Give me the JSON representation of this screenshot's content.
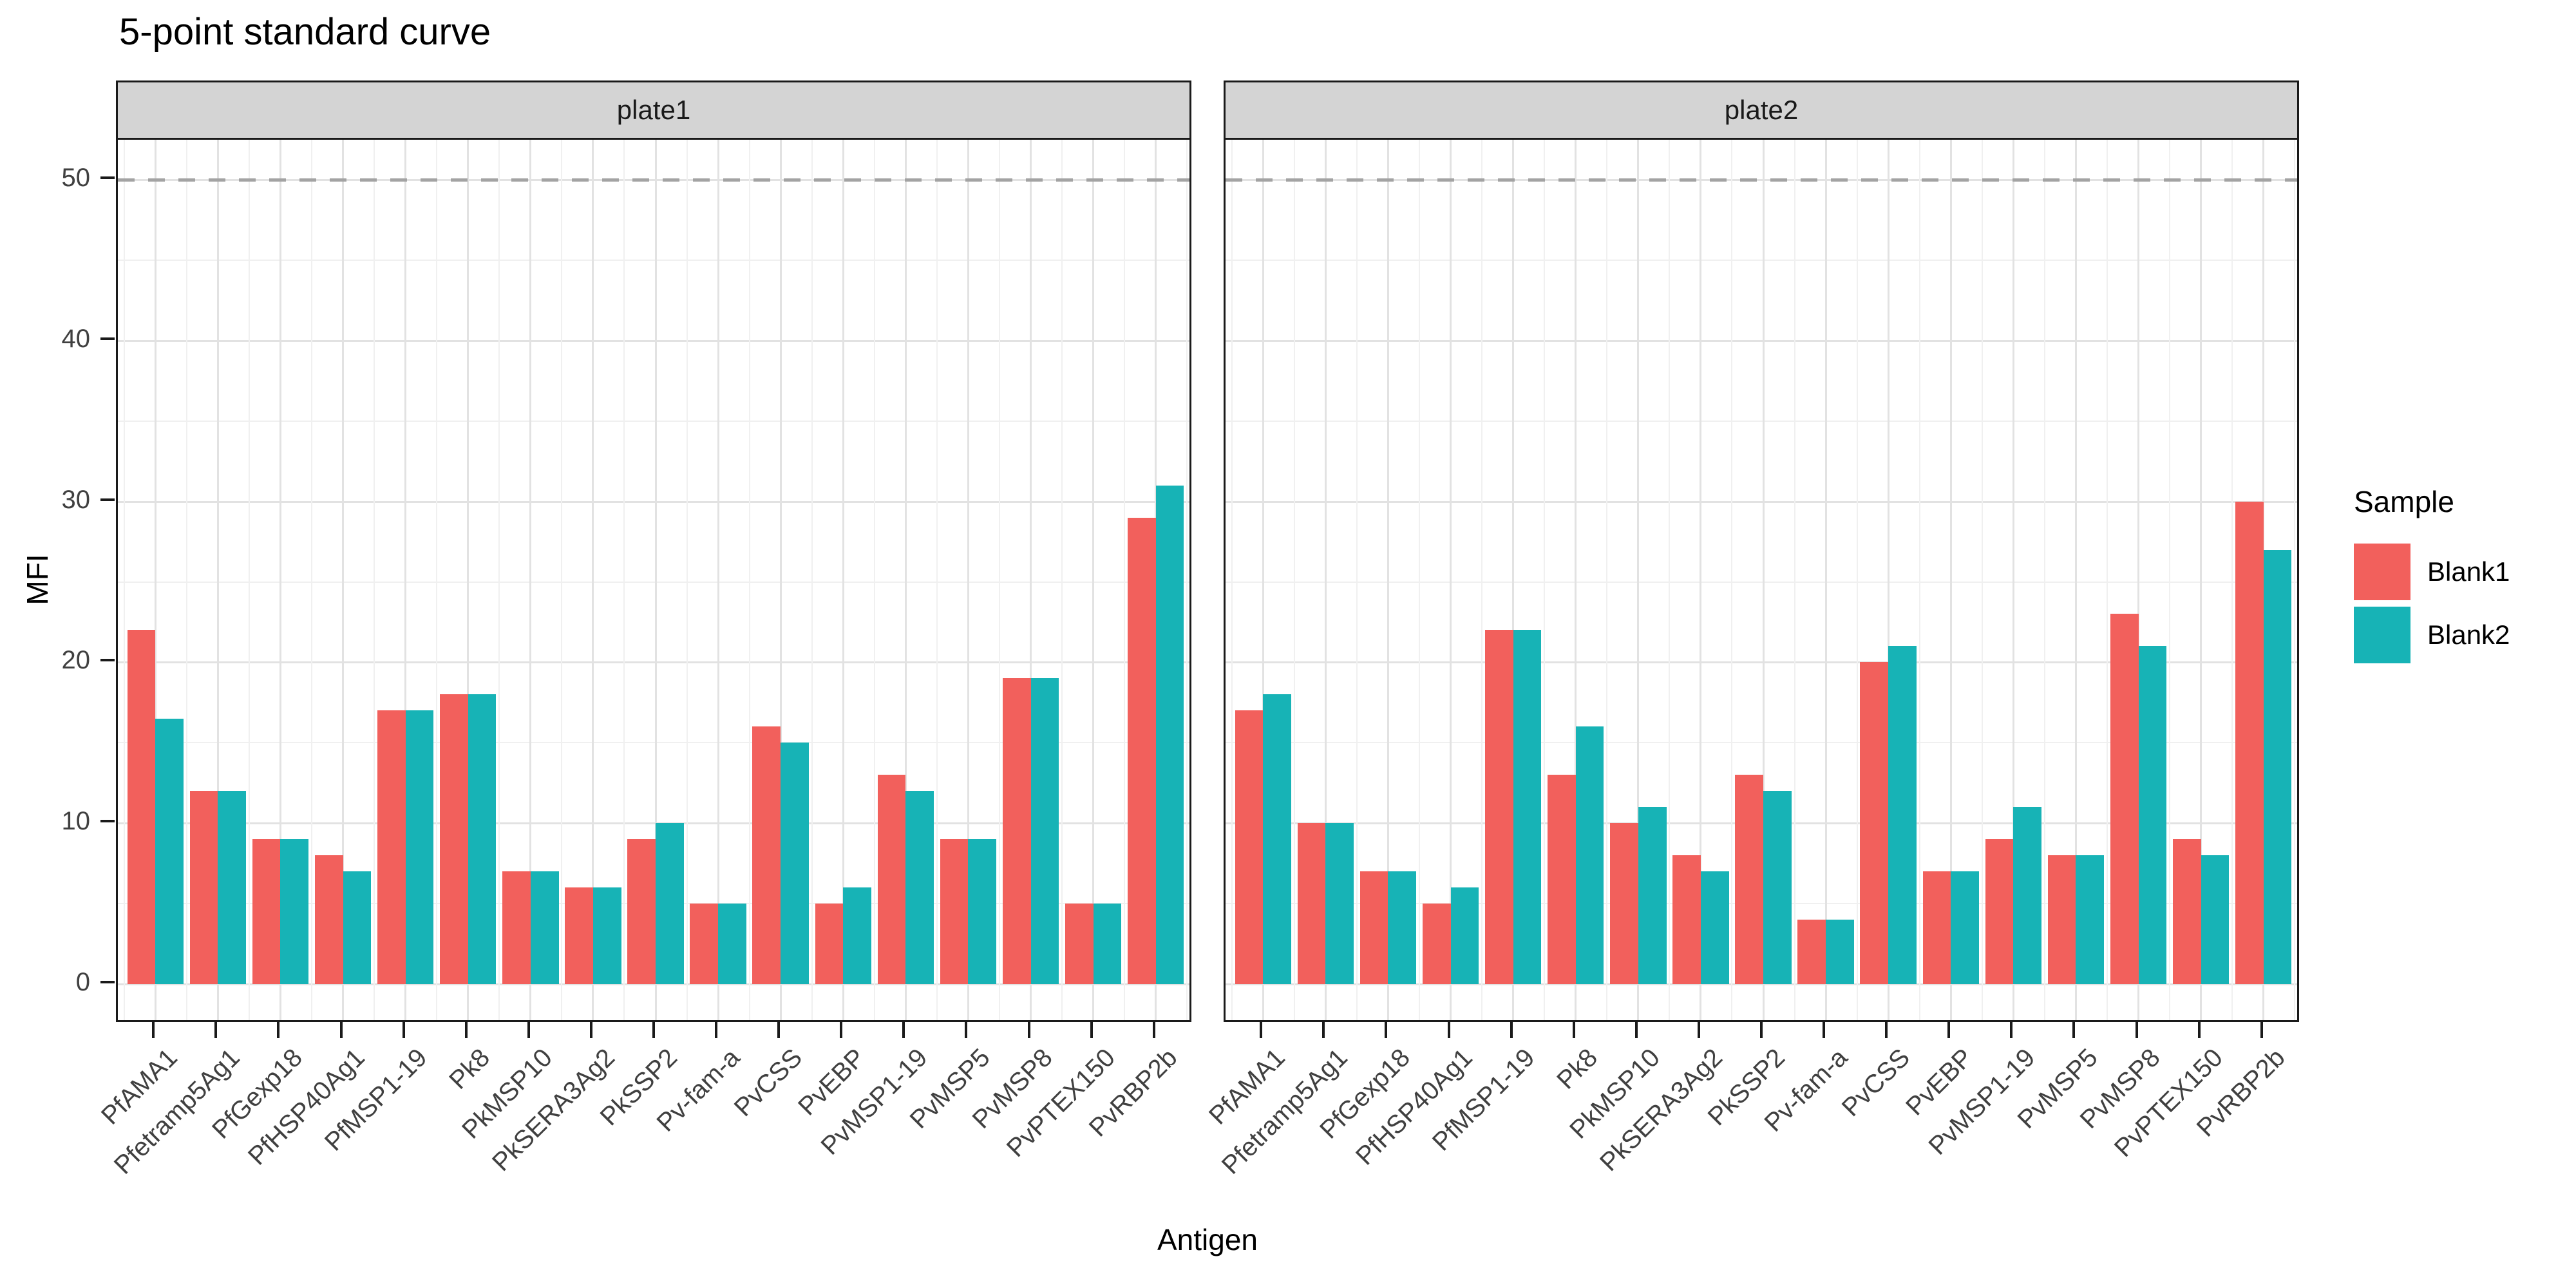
{
  "chart_data": {
    "type": "bar",
    "title": "5-point standard curve",
    "xlabel": "Antigen",
    "ylabel": "MFI",
    "ylim": [
      0,
      52.5
    ],
    "yticks": [
      0,
      10,
      20,
      30,
      40,
      50
    ],
    "grid": "on",
    "reference_line": {
      "y": 50,
      "style": "dashed",
      "color": "#a3a3a3"
    },
    "legend": {
      "title": "Sample",
      "position": "right"
    },
    "series_names": [
      "Blank1",
      "Blank2"
    ],
    "series_colors": {
      "Blank1": "#f2605c",
      "Blank2": "#17b3b6"
    },
    "categories": [
      "PfAMA1",
      "Pfetramp5Ag1",
      "PfGexp18",
      "PfHSP40Ag1",
      "PfMSP1-19",
      "Pk8",
      "PkMSP10",
      "PkSERA3Ag2",
      "PkSSP2",
      "Pv-fam-a",
      "PvCSS",
      "PvEBP",
      "PvMSP1-19",
      "PvMSP5",
      "PvMSP8",
      "PvPTEX150",
      "PvRBP2b"
    ],
    "facets": [
      {
        "label": "plate1",
        "series": [
          {
            "name": "Blank1",
            "values": [
              22,
              12,
              9,
              8,
              17,
              18,
              7,
              6,
              9,
              5,
              16,
              5,
              13,
              9,
              19,
              5,
              29
            ]
          },
          {
            "name": "Blank2",
            "values": [
              16.5,
              12,
              9,
              7,
              17,
              18,
              7,
              6,
              10,
              5,
              15,
              6,
              12,
              9,
              19,
              5,
              31
            ]
          }
        ]
      },
      {
        "label": "plate2",
        "series": [
          {
            "name": "Blank1",
            "values": [
              17,
              10,
              7,
              5,
              22,
              13,
              10,
              8,
              13,
              4,
              20,
              7,
              9,
              8,
              23,
              9,
              30
            ]
          },
          {
            "name": "Blank2",
            "values": [
              18,
              10,
              7,
              6,
              22,
              16,
              11,
              7,
              12,
              4,
              21,
              7,
              11,
              8,
              21,
              8,
              27
            ]
          }
        ]
      }
    ]
  }
}
